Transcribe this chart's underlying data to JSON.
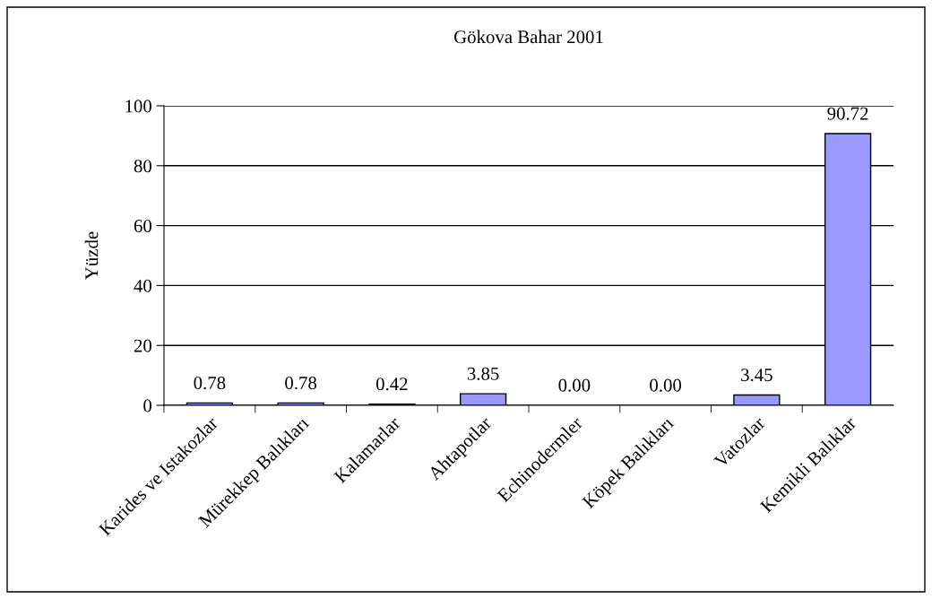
{
  "chart_data": {
    "type": "bar",
    "title": "Gökova Bahar 2001",
    "ylabel": "Yüzde",
    "categories": [
      "Karides ve Istakozlar",
      "Mürekkep Balıkları",
      "Kalamarlar",
      "Ahtapotlar",
      "Echinodermler",
      "Köpek Balıkları",
      "Vatozlar",
      "Kemikli Balıklar"
    ],
    "values": [
      0.78,
      0.78,
      0.42,
      3.85,
      0.0,
      0.0,
      3.45,
      90.72
    ],
    "value_labels": [
      "0.78",
      "0.78",
      "0.42",
      "3.85",
      "0.00",
      "0.00",
      "3.45",
      "90.72"
    ],
    "color": "#9999ff",
    "ylim": [
      0,
      100
    ],
    "yticks": [
      0,
      20,
      40,
      60,
      80,
      100
    ],
    "grid": "y"
  }
}
